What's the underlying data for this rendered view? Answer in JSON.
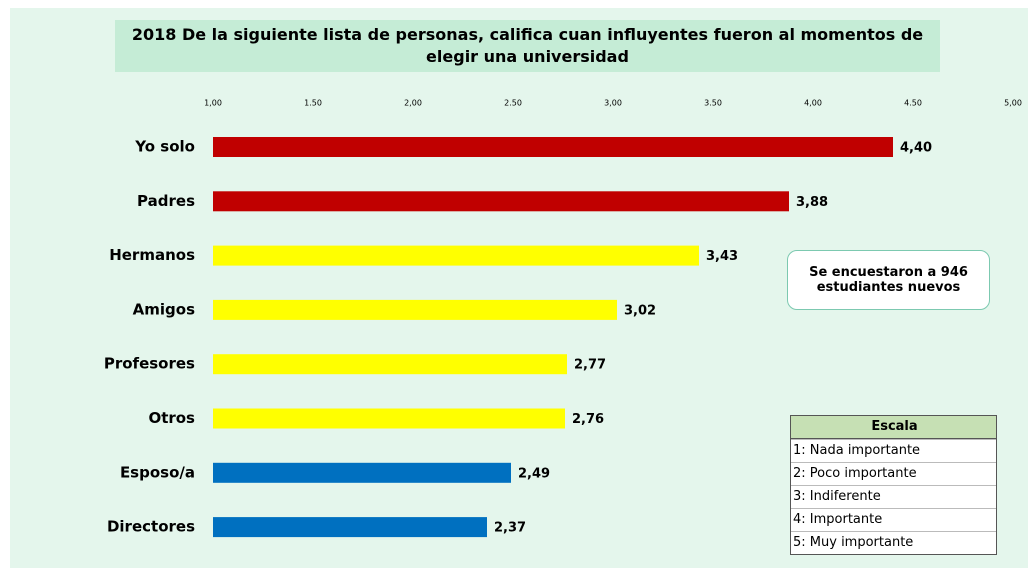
{
  "chart_data": {
    "type": "barh",
    "title": "2018 De la siguiente lista de personas, califica cuan influyentes fueron al momentos de elegir una universidad",
    "categories": [
      "Yo solo",
      "Padres",
      "Hermanos",
      "Amigos",
      "Profesores",
      "Otros",
      "Esposo/a",
      "Directores"
    ],
    "values": [
      4.4,
      3.88,
      3.43,
      3.02,
      2.77,
      2.76,
      2.49,
      2.37
    ],
    "value_labels": [
      "4,40",
      "3,88",
      "3,43",
      "3,02",
      "2,77",
      "2,76",
      "2,49",
      "2,37"
    ],
    "colors": [
      "#c00000",
      "#c00000",
      "#ffff00",
      "#ffff00",
      "#ffff00",
      "#ffff00",
      "#0070c0",
      "#0070c0"
    ],
    "xlim": [
      1,
      5
    ],
    "xticks": [
      {
        "value": 1,
        "label": "1,00"
      },
      {
        "value": 1.5,
        "label": "1.50"
      },
      {
        "value": 2,
        "label": "2,00"
      },
      {
        "value": 2.5,
        "label": "2.50"
      },
      {
        "value": 3,
        "label": "3,00"
      },
      {
        "value": 3.5,
        "label": "3.50"
      },
      {
        "value": 4,
        "label": "4,00"
      },
      {
        "value": 4.5,
        "label": "4.50"
      },
      {
        "value": 5,
        "label": "5,00"
      }
    ],
    "annotation": [
      "Se encuestaron a 946",
      "estudiantes nuevos"
    ],
    "scale": {
      "title": "Escala",
      "items": [
        "1: Nada importante",
        "2: Poco importante",
        "3: Indiferente",
        "4: Importante",
        "5: Muy importante"
      ]
    }
  }
}
